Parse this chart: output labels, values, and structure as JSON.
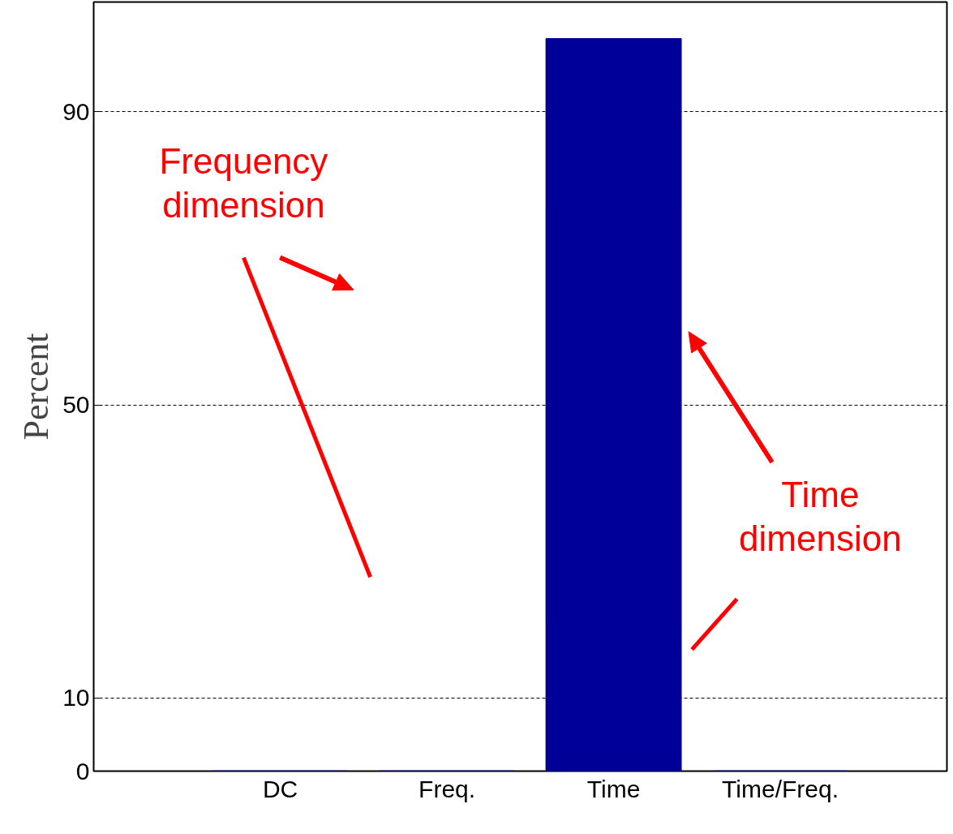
{
  "chart_data": {
    "type": "bar",
    "ylabel": "Percent",
    "categories": [
      "DC",
      "Freq.",
      "Time",
      "Time/Freq."
    ],
    "values": [
      0,
      0,
      100,
      0
    ],
    "color": "#000099",
    "ylim": [
      0,
      105
    ],
    "yticks": [
      0,
      10,
      50,
      90
    ],
    "grid": "y",
    "annotations": [
      "Frequency\ndimension",
      "Time\ndimension"
    ]
  }
}
